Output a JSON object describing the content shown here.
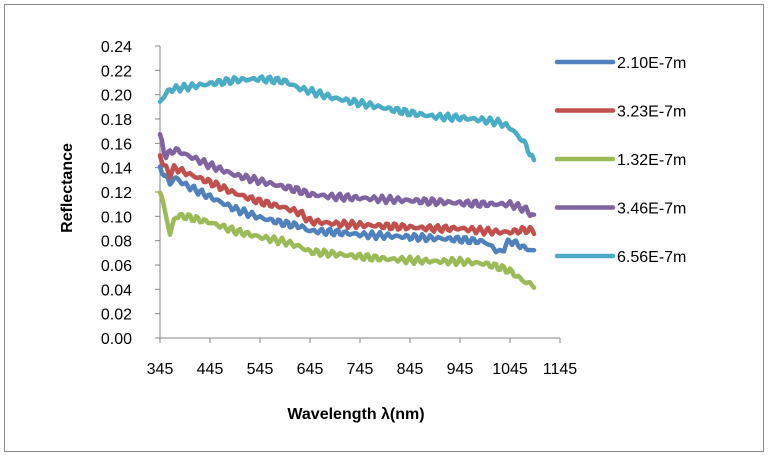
{
  "chart_data": {
    "type": "line",
    "title": "",
    "xlabel": "Wavelength λ(nm)",
    "ylabel": "Reflectance",
    "xlim": [
      345,
      1145
    ],
    "ylim": [
      0,
      0.24
    ],
    "x_ticks": [
      "345",
      "445",
      "545",
      "645",
      "745",
      "845",
      "945",
      "1045",
      "1145"
    ],
    "y_ticks": [
      "0.00",
      "0.02",
      "0.04",
      "0.06",
      "0.08",
      "0.10",
      "0.12",
      "0.14",
      "0.16",
      "0.18",
      "0.20",
      "0.22",
      "0.24"
    ],
    "grid": false,
    "legend_position": "right",
    "x": [
      345,
      355,
      365,
      375,
      395,
      445,
      495,
      545,
      595,
      625,
      645,
      695,
      745,
      795,
      845,
      895,
      945,
      995,
      1025,
      1045,
      1075,
      1095
    ],
    "series": [
      {
        "name": "2.10E-7m",
        "color": "#4f81bd",
        "values": [
          0.139,
          0.134,
          0.127,
          0.132,
          0.126,
          0.116,
          0.106,
          0.099,
          0.094,
          0.092,
          0.088,
          0.087,
          0.085,
          0.084,
          0.083,
          0.082,
          0.081,
          0.079,
          0.07,
          0.08,
          0.074,
          0.071
        ]
      },
      {
        "name": "3.23E-7m",
        "color": "#c0504d",
        "values": [
          0.15,
          0.14,
          0.135,
          0.14,
          0.136,
          0.128,
          0.119,
          0.112,
          0.107,
          0.103,
          0.096,
          0.094,
          0.093,
          0.092,
          0.091,
          0.09,
          0.09,
          0.088,
          0.087,
          0.087,
          0.089,
          0.088
        ]
      },
      {
        "name": "1.32E-7m",
        "color": "#9bbb59",
        "values": [
          0.12,
          0.105,
          0.085,
          0.1,
          0.1,
          0.095,
          0.088,
          0.083,
          0.079,
          0.075,
          0.071,
          0.069,
          0.067,
          0.065,
          0.064,
          0.063,
          0.063,
          0.061,
          0.058,
          0.055,
          0.046,
          0.043
        ]
      },
      {
        "name": "3.46E-7m",
        "color": "#8064a2",
        "values": [
          0.166,
          0.15,
          0.152,
          0.155,
          0.151,
          0.142,
          0.134,
          0.129,
          0.124,
          0.121,
          0.118,
          0.116,
          0.115,
          0.114,
          0.113,
          0.112,
          0.111,
          0.11,
          0.11,
          0.11,
          0.106,
          0.099
        ]
      },
      {
        "name": "6.56E-7m",
        "color": "#4bacc6",
        "values": [
          0.194,
          0.2,
          0.204,
          0.205,
          0.206,
          0.209,
          0.212,
          0.213,
          0.211,
          0.205,
          0.203,
          0.197,
          0.193,
          0.189,
          0.185,
          0.182,
          0.181,
          0.179,
          0.177,
          0.173,
          0.16,
          0.143
        ]
      }
    ]
  }
}
